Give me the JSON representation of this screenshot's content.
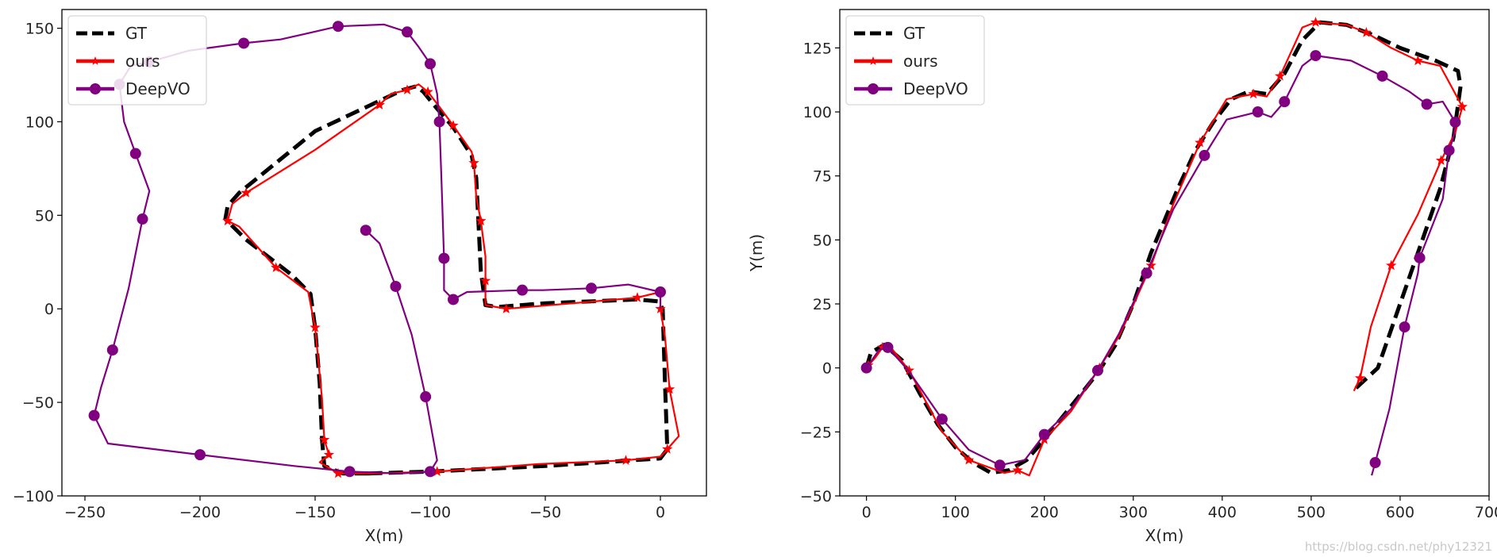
{
  "chart_data": [
    {
      "type": "line",
      "xlabel": "X(m)",
      "ylabel": "",
      "xlim": [
        -260,
        20
      ],
      "ylim": [
        -100,
        160
      ],
      "xticks": [
        -250,
        -200,
        -150,
        -100,
        -50,
        0
      ],
      "yticks": [
        -100,
        -50,
        0,
        50,
        100,
        150
      ],
      "legend_position": "top-left",
      "grid": false,
      "series": [
        {
          "name": "GT",
          "color": "#000000",
          "style": "dashed",
          "points": [
            [
              -127,
              -88
            ],
            [
              -100,
              -87
            ],
            [
              -50,
              -84
            ],
            [
              0,
              -80
            ],
            [
              3,
              -75
            ],
            [
              2,
              -40
            ],
            [
              1,
              0
            ],
            [
              -1,
              4
            ],
            [
              -10,
              5
            ],
            [
              -50,
              3
            ],
            [
              -71,
              1
            ],
            [
              -76,
              2
            ],
            [
              -78,
              20
            ],
            [
              -79,
              45
            ],
            [
              -80,
              70
            ],
            [
              -82,
              82
            ],
            [
              -90,
              97
            ],
            [
              -97,
              107
            ],
            [
              -103,
              116
            ],
            [
              -106,
              119
            ],
            [
              -112,
              117
            ],
            [
              -150,
              95
            ],
            [
              -183,
              62
            ],
            [
              -188,
              55
            ],
            [
              -189,
              48
            ],
            [
              -180,
              37
            ],
            [
              -160,
              18
            ],
            [
              -152,
              8
            ],
            [
              -150,
              -10
            ],
            [
              -148,
              -40
            ],
            [
              -147,
              -70
            ],
            [
              -146,
              -84
            ],
            [
              -138,
              -88
            ],
            [
              -127,
              -88
            ]
          ]
        },
        {
          "name": "ours",
          "color": "#ff0000",
          "style": "solid-star",
          "points": [
            [
              -144,
              -78
            ],
            [
              -148,
              -82
            ],
            [
              -140,
              -88
            ],
            [
              -124,
              -88
            ],
            [
              -97,
              -87
            ],
            [
              -53,
              -83
            ],
            [
              -15,
              -81
            ],
            [
              0,
              -79
            ],
            [
              3,
              -75
            ],
            [
              8,
              -68
            ],
            [
              4,
              -43
            ],
            [
              2,
              -15
            ],
            [
              0,
              0
            ],
            [
              0,
              9
            ],
            [
              -10,
              6
            ],
            [
              -38,
              3
            ],
            [
              -67,
              0
            ],
            [
              -76,
              2
            ],
            [
              -76,
              15
            ],
            [
              -76,
              28
            ],
            [
              -78,
              47
            ],
            [
              -80,
              60
            ],
            [
              -81,
              78
            ],
            [
              -82,
              84
            ],
            [
              -90,
              98
            ],
            [
              -96,
              108
            ],
            [
              -101,
              116
            ],
            [
              -105,
              120
            ],
            [
              -110,
              117
            ],
            [
              -117,
              115
            ],
            [
              -122,
              109
            ],
            [
              -150,
              85
            ],
            [
              -180,
              62
            ],
            [
              -186,
              56
            ],
            [
              -188,
              47
            ],
            [
              -183,
              44
            ],
            [
              -167,
              22
            ],
            [
              -153,
              9
            ],
            [
              -150,
              -10
            ],
            [
              -147,
              -48
            ],
            [
              -146,
              -70
            ],
            [
              -144,
              -78
            ]
          ]
        },
        {
          "name": "DeepVO",
          "color": "#800080",
          "style": "solid-circle",
          "points": [
            [
              -128,
              42
            ],
            [
              -122,
              35
            ],
            [
              -115,
              12
            ],
            [
              -108,
              -14
            ],
            [
              -102,
              -47
            ],
            [
              -97,
              -81
            ],
            [
              -100,
              -87
            ],
            [
              -113,
              -88
            ],
            [
              -135,
              -87
            ],
            [
              -159,
              -84
            ],
            [
              -200,
              -78
            ],
            [
              -240,
              -72
            ],
            [
              -246,
              -57
            ],
            [
              -243,
              -42
            ],
            [
              -238,
              -22
            ],
            [
              -231,
              11
            ],
            [
              -225,
              48
            ],
            [
              -222,
              63
            ],
            [
              -228,
              83
            ],
            [
              -233,
              100
            ],
            [
              -235,
              120
            ],
            [
              -230,
              130
            ],
            [
              -222,
              132
            ],
            [
              -205,
              138
            ],
            [
              -181,
              142
            ],
            [
              -165,
              144
            ],
            [
              -140,
              151
            ],
            [
              -120,
              152
            ],
            [
              -110,
              148
            ],
            [
              -105,
              140
            ],
            [
              -100,
              131
            ],
            [
              -97,
              115
            ],
            [
              -96,
              100
            ],
            [
              -95,
              65
            ],
            [
              -94,
              27
            ],
            [
              -94,
              10
            ],
            [
              -90,
              5
            ],
            [
              -84,
              9
            ],
            [
              -60,
              10
            ],
            [
              -51,
              10
            ],
            [
              -30,
              11
            ],
            [
              -14,
              13
            ],
            [
              0,
              9
            ],
            [
              0,
              0
            ]
          ]
        }
      ]
    },
    {
      "type": "line",
      "xlabel": "X(m)",
      "ylabel": "Y(m)",
      "xlim": [
        -30,
        700
      ],
      "ylim": [
        -50,
        140
      ],
      "xticks": [
        0,
        100,
        200,
        300,
        400,
        500,
        600,
        700
      ],
      "yticks": [
        -50,
        -25,
        0,
        25,
        50,
        75,
        100,
        125
      ],
      "legend_position": "top-left",
      "grid": false,
      "series": [
        {
          "name": "GT",
          "color": "#000000",
          "style": "dashed",
          "points": [
            [
              0,
              0
            ],
            [
              5,
              6
            ],
            [
              20,
              9
            ],
            [
              40,
              3
            ],
            [
              60,
              -10
            ],
            [
              80,
              -22
            ],
            [
              100,
              -31
            ],
            [
              120,
              -37
            ],
            [
              140,
              -41
            ],
            [
              160,
              -40
            ],
            [
              180,
              -36
            ],
            [
              200,
              -28
            ],
            [
              230,
              -15
            ],
            [
              260,
              -2
            ],
            [
              280,
              9
            ],
            [
              300,
              25
            ],
            [
              320,
              45
            ],
            [
              350,
              70
            ],
            [
              370,
              85
            ],
            [
              390,
              96
            ],
            [
              410,
              105
            ],
            [
              430,
              108
            ],
            [
              450,
              107
            ],
            [
              470,
              115
            ],
            [
              490,
              128
            ],
            [
              510,
              135
            ],
            [
              540,
              134
            ],
            [
              570,
              130
            ],
            [
              600,
              125
            ],
            [
              640,
              120
            ],
            [
              665,
              116
            ],
            [
              668,
              110
            ],
            [
              660,
              90
            ],
            [
              645,
              70
            ],
            [
              625,
              50
            ],
            [
              600,
              25
            ],
            [
              575,
              0
            ],
            [
              550,
              -8
            ]
          ]
        },
        {
          "name": "ours",
          "color": "#ff0000",
          "style": "solid-star",
          "points": [
            [
              2,
              1
            ],
            [
              10,
              4
            ],
            [
              18,
              8
            ],
            [
              25,
              9
            ],
            [
              48,
              -1
            ],
            [
              85,
              -25
            ],
            [
              115,
              -36
            ],
            [
              155,
              -41
            ],
            [
              170,
              -40
            ],
            [
              183,
              -42
            ],
            [
              200,
              -28
            ],
            [
              230,
              -17
            ],
            [
              262,
              0
            ],
            [
              285,
              13
            ],
            [
              320,
              40
            ],
            [
              345,
              64
            ],
            [
              375,
              88
            ],
            [
              405,
              105
            ],
            [
              435,
              107
            ],
            [
              450,
              106
            ],
            [
              465,
              114
            ],
            [
              490,
              133
            ],
            [
              505,
              135
            ],
            [
              540,
              134
            ],
            [
              562,
              131
            ],
            [
              590,
              125
            ],
            [
              620,
              120
            ],
            [
              645,
              118
            ],
            [
              670,
              102
            ],
            [
              662,
              92
            ],
            [
              646,
              81
            ],
            [
              620,
              60
            ],
            [
              590,
              40
            ],
            [
              567,
              16
            ],
            [
              555,
              -4
            ],
            [
              548,
              -9
            ]
          ]
        },
        {
          "name": "DeepVO",
          "color": "#800080",
          "style": "solid-circle",
          "points": [
            [
              0,
              0
            ],
            [
              14,
              7
            ],
            [
              24,
              8
            ],
            [
              47,
              -1
            ],
            [
              85,
              -20
            ],
            [
              115,
              -32
            ],
            [
              150,
              -38
            ],
            [
              178,
              -36
            ],
            [
              200,
              -26
            ],
            [
              230,
              -16
            ],
            [
              260,
              -1
            ],
            [
              285,
              14
            ],
            [
              315,
              37
            ],
            [
              345,
              62
            ],
            [
              380,
              83
            ],
            [
              405,
              97
            ],
            [
              440,
              100
            ],
            [
              455,
              98
            ],
            [
              470,
              104
            ],
            [
              490,
              118
            ],
            [
              505,
              122
            ],
            [
              545,
              120
            ],
            [
              580,
              114
            ],
            [
              610,
              108
            ],
            [
              630,
              103
            ],
            [
              648,
              104
            ],
            [
              662,
              96
            ],
            [
              660,
              90
            ],
            [
              655,
              85
            ],
            [
              648,
              66
            ],
            [
              622,
              43
            ],
            [
              620,
              37
            ],
            [
              605,
              16
            ],
            [
              588,
              -16
            ],
            [
              572,
              -37
            ],
            [
              568,
              -42
            ]
          ]
        }
      ]
    }
  ],
  "watermark": "https://blog.csdn.net/phy12321"
}
